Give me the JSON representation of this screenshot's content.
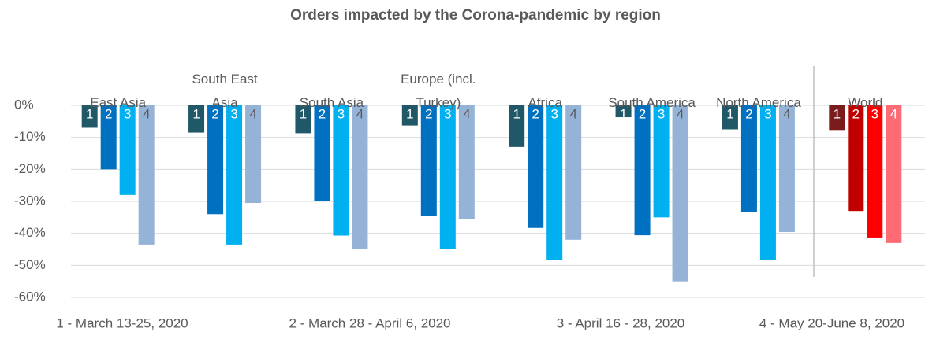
{
  "chart_data": {
    "type": "bar",
    "title": "Orders impacted by the Corona-pandemic by region",
    "categories": [
      "East Asia",
      "South East Asia",
      "South Asia",
      "Europe (incl. Turkey)",
      "Africa",
      "South America",
      "North America",
      "World"
    ],
    "highlight_index": 7,
    "series": [
      {
        "name": "1 - March 13-25, 2020",
        "label": "1",
        "color": "#215868",
        "highlight_color": "#7b1c1c",
        "label_color": "#ffffff",
        "values": [
          -7,
          -8.5,
          -8.7,
          -6.3,
          -13,
          -3.7,
          -7.5,
          -7.7
        ]
      },
      {
        "name": "2 - March 28 - April 6, 2020",
        "label": "2",
        "color": "#0070c0",
        "highlight_color": "#c00000",
        "label_color": "#ffffff",
        "values": [
          -20,
          -34,
          -30,
          -34.5,
          -38.3,
          -40.6,
          -33.3,
          -33
        ]
      },
      {
        "name": "3 - April 16 - 28, 2020",
        "label": "3",
        "color": "#00b0f0",
        "highlight_color": "#ff0000",
        "label_color": "#ffffff",
        "values": [
          -28,
          -43.5,
          -40.7,
          -45,
          -48.2,
          -35,
          -48.2,
          -41.3
        ]
      },
      {
        "name": "4 - May 20-June 8, 2020",
        "label": "4",
        "color": "#95b3d7",
        "highlight_color": "#ff6b75",
        "label_color": "#595959",
        "values": [
          -43.5,
          -30.5,
          -45,
          -35.5,
          -42,
          -55,
          -39.6,
          -43
        ]
      }
    ],
    "ylim": [
      -60,
      0
    ],
    "yticks": [
      {
        "value": 0,
        "label": "0%"
      },
      {
        "value": -10,
        "label": "-10%"
      },
      {
        "value": -20,
        "label": "-20%"
      },
      {
        "value": -30,
        "label": "-30%"
      },
      {
        "value": -40,
        "label": "-40%"
      },
      {
        "value": -50,
        "label": "-50%"
      },
      {
        "value": -60,
        "label": "-60%"
      }
    ],
    "grid": true
  }
}
